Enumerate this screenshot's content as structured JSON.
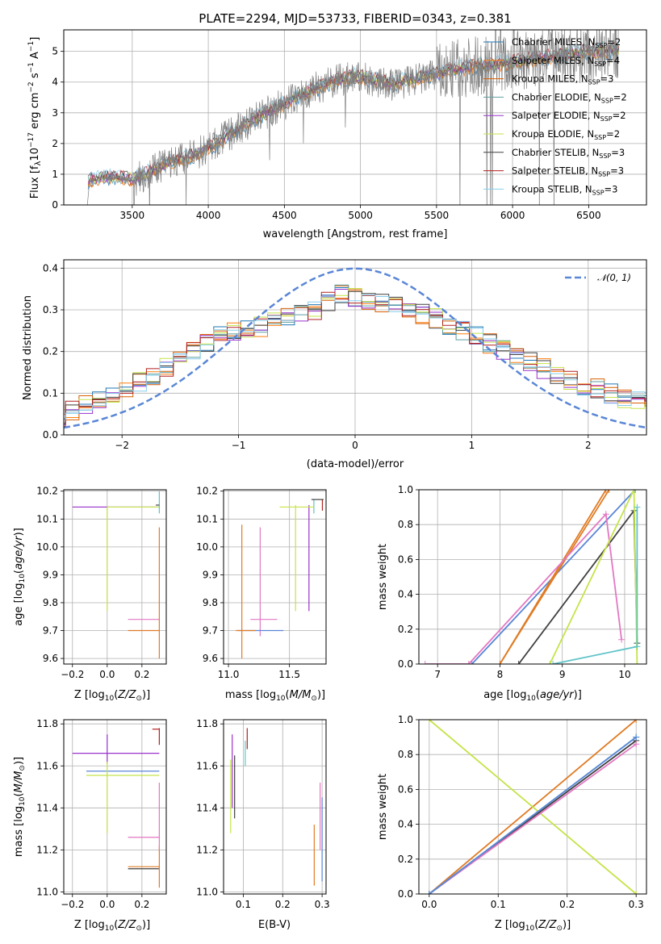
{
  "figure": {
    "title": "PLATE=2294, MJD=53733, FIBERID=0343, z=0.381"
  },
  "chart_data": [
    {
      "id": "spectrum",
      "type": "line",
      "xlabel": "wavelength [Angstrom, rest frame]",
      "ylabel": "Flux [f_λ 10^-17 erg cm^-2 s^-1 A^-1]",
      "xlim": [
        3050,
        6880
      ],
      "ylim": [
        0,
        5.7
      ],
      "xticks": [
        3500,
        4000,
        4500,
        5000,
        5500,
        6000,
        6500
      ],
      "yticks": [
        0,
        1,
        2,
        3,
        4,
        5
      ],
      "grid": true,
      "legend_position": "upper-right",
      "data_line": {
        "name": "data",
        "color": "#7f7f7f",
        "x": [
          3205,
          3220,
          3400,
          3520,
          3700,
          3900,
          4050,
          4300,
          4500,
          4700,
          4950,
          5200,
          5400,
          5700,
          5950,
          6200,
          6500,
          6700
        ],
        "y": [
          0.0,
          0.8,
          0.9,
          0.8,
          1.3,
          1.6,
          2.0,
          2.8,
          3.3,
          3.8,
          4.2,
          3.9,
          4.1,
          4.5,
          4.6,
          4.8,
          5.0,
          5.1
        ]
      },
      "series": [
        {
          "name": "Chabrier MILES, N_SSP=2",
          "color": "#1f77b4"
        },
        {
          "name": "Salpeter MILES, N_SSP=4",
          "color": "#ff7f0e"
        },
        {
          "name": "Kroupa MILES, N_SSP=3",
          "color": "#d95f02"
        },
        {
          "name": "Chabrier ELODIE, N_SSP=2",
          "color": "#5f9ea0"
        },
        {
          "name": "Salpeter ELODIE, N_SSP=2",
          "color": "#9932cc"
        },
        {
          "name": "Kroupa ELODIE, N_SSP=2",
          "color": "#c5e34a"
        },
        {
          "name": "Chabrier STELIB, N_SSP=3",
          "color": "#404040"
        },
        {
          "name": "Salpeter STELIB, N_SSP=3",
          "color": "#b22222"
        },
        {
          "name": "Kroupa STELIB, N_SSP=3",
          "color": "#87ceeb"
        }
      ],
      "model_x": [
        3210,
        3300,
        3400,
        3520,
        3700,
        3900,
        4050,
        4300,
        4500,
        4700,
        4950,
        5200,
        5400,
        5700,
        5950,
        6200,
        6500,
        6700
      ],
      "model_y": [
        0.8,
        0.9,
        0.9,
        0.85,
        1.3,
        1.6,
        2.0,
        2.8,
        3.3,
        3.8,
        4.2,
        3.95,
        4.15,
        4.5,
        4.6,
        4.8,
        5.0,
        5.05
      ]
    },
    {
      "id": "residuals",
      "type": "line",
      "xlabel": "(data-model)/error",
      "ylabel": "Normed distribution",
      "xlim": [
        -2.5,
        2.5
      ],
      "ylim": [
        0,
        0.42
      ],
      "xticks": [
        -2,
        -1,
        0,
        1,
        2
      ],
      "yticks": [
        0.0,
        0.1,
        0.2,
        0.3,
        0.4
      ],
      "grid": true,
      "legend_position": "upper-right",
      "gaussian": {
        "name": "𝒩(0, 1)",
        "mean": 0,
        "sigma": 1,
        "color": "#5a86d6"
      },
      "histogram_center": [
        0.045,
        0.06,
        0.07,
        0.085,
        0.09,
        0.11,
        0.13,
        0.145,
        0.16,
        0.185,
        0.205,
        0.225,
        0.24,
        0.245,
        0.25,
        0.26,
        0.275,
        0.285,
        0.29,
        0.3,
        0.32,
        0.335,
        0.33,
        0.325,
        0.32,
        0.31,
        0.3,
        0.29,
        0.28,
        0.265,
        0.25,
        0.235,
        0.22,
        0.205,
        0.19,
        0.175,
        0.16,
        0.145,
        0.13,
        0.12,
        0.11,
        0.1,
        0.09,
        0.085,
        0.08
      ]
    },
    {
      "id": "age_vs_Z",
      "type": "scatter",
      "xlabel": "Z [log10(Z/Z⊙)]",
      "ylabel": "age  [log10(age/yr)]",
      "xlim": [
        -0.25,
        0.34
      ],
      "ylim": [
        9.58,
        10.205
      ],
      "xticks": [
        -0.2,
        0.0,
        0.2
      ],
      "yticks": [
        9.6,
        9.7,
        9.8,
        9.9,
        10.0,
        10.1,
        10.2
      ],
      "grid": true
    },
    {
      "id": "age_vs_mass",
      "type": "scatter",
      "xlabel": "mass [log10(M/M⊙)]",
      "ylabel": "",
      "xlim": [
        10.96,
        11.8
      ],
      "ylim": [
        9.58,
        10.205
      ],
      "xticks": [
        11.0,
        11.5
      ],
      "yticks": [
        9.6,
        9.7,
        9.8,
        9.9,
        10.0,
        10.1,
        10.2
      ],
      "grid": true
    },
    {
      "id": "weight_vs_age",
      "type": "line",
      "xlabel": "age  [log10(age/yr)]",
      "ylabel": "mass weight",
      "xlim": [
        6.7,
        10.35
      ],
      "ylim": [
        0,
        1.0
      ],
      "xticks": [
        7,
        8,
        9,
        10
      ],
      "yticks": [
        0.0,
        0.2,
        0.4,
        0.6,
        0.8,
        1.0
      ],
      "grid": true,
      "series": [
        {
          "color": "#5a86d6",
          "x": [
            7.55,
            10.17
          ],
          "y": [
            0.0,
            1.0
          ]
        },
        {
          "color": "#e07b24",
          "x": [
            8.0,
            9.7
          ],
          "y": [
            0.0,
            1.0
          ]
        },
        {
          "color": "#e07b24",
          "x": [
            8.0,
            9.75
          ],
          "y": [
            0.0,
            1.0
          ]
        },
        {
          "color": "#404040",
          "x": [
            8.3,
            10.15,
            10.2
          ],
          "y": [
            0.0,
            0.88,
            0.12
          ]
        },
        {
          "color": "#e377c2",
          "x": [
            6.8,
            7.5,
            9.7,
            9.95
          ],
          "y": [
            0.0,
            0.0,
            0.86,
            0.14
          ]
        },
        {
          "color": "#c5e34a",
          "x": [
            8.8,
            10.15,
            10.2
          ],
          "y": [
            0.0,
            1.0,
            0.0
          ]
        },
        {
          "color": "#5fc3c8",
          "x": [
            8.85,
            10.2,
            10.2
          ],
          "y": [
            0.0,
            0.1,
            0.9
          ]
        }
      ]
    },
    {
      "id": "mass_vs_Z",
      "type": "scatter",
      "xlabel": "Z [log10(Z/Z⊙)]",
      "ylabel": "mass [log10(M/M⊙)]",
      "xlim": [
        -0.25,
        0.34
      ],
      "ylim": [
        10.99,
        11.82
      ],
      "xticks": [
        -0.2,
        0.0,
        0.2
      ],
      "yticks": [
        11.0,
        11.2,
        11.4,
        11.6,
        11.8
      ],
      "grid": true
    },
    {
      "id": "mass_vs_EBV",
      "type": "scatter",
      "xlabel": "E(B-V)",
      "ylabel": "",
      "xlim": [
        0.05,
        0.31
      ],
      "ylim": [
        10.99,
        11.82
      ],
      "xticks": [
        0.1,
        0.2,
        0.3
      ],
      "yticks": [
        11.0,
        11.2,
        11.4,
        11.6,
        11.8
      ],
      "grid": true
    },
    {
      "id": "weight_vs_Z",
      "type": "line",
      "xlabel": "Z [log10(Z/Z⊙)]",
      "ylabel": "mass weight",
      "xlim": [
        -0.015,
        0.315
      ],
      "ylim": [
        0,
        1.0
      ],
      "xticks": [
        0.0,
        0.1,
        0.2,
        0.3
      ],
      "yticks": [
        0.0,
        0.2,
        0.4,
        0.6,
        0.8,
        1.0
      ],
      "grid": true,
      "series": [
        {
          "color": "#e07b24",
          "x": [
            0.0,
            0.3
          ],
          "y": [
            0.0,
            1.0
          ]
        },
        {
          "color": "#c5e34a",
          "x": [
            0.0,
            0.3
          ],
          "y": [
            1.0,
            0.0
          ]
        },
        {
          "color": "#404040",
          "x": [
            0.0,
            0.3
          ],
          "y": [
            0.0,
            0.88
          ]
        },
        {
          "color": "#e377c2",
          "x": [
            0.0,
            0.3
          ],
          "y": [
            0.0,
            0.86
          ]
        },
        {
          "color": "#5fc3c8",
          "x": [
            0.0,
            0.3
          ],
          "y": [
            0.0,
            0.9
          ]
        },
        {
          "color": "#5a86d6",
          "x": [
            0.0,
            0.3
          ],
          "y": [
            0.0,
            0.9
          ]
        }
      ]
    }
  ]
}
